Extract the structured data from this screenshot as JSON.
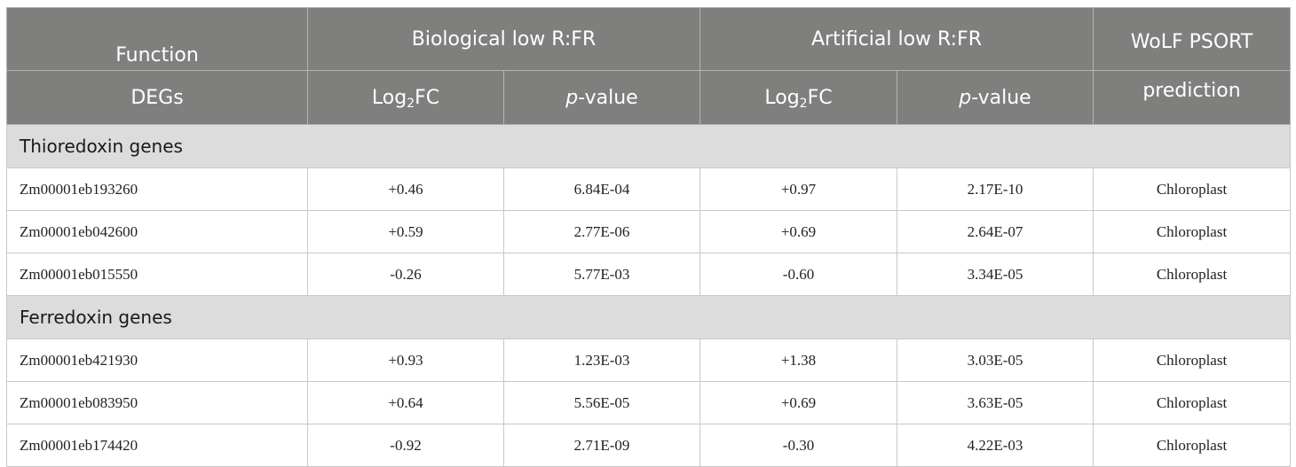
{
  "header": {
    "function": "Function",
    "degs": "DEGs",
    "biological": "Biological low R:FR",
    "artificial": "Artificial low R:FR",
    "log2fc_prefix": "Log",
    "log2fc_sub": "2",
    "log2fc_suffix": "FC",
    "pvalue_italic": "p",
    "pvalue_rest": "-value",
    "wolf_line1": "WoLF PSORT",
    "wolf_line2": "prediction"
  },
  "sections": [
    {
      "title": "Thioredoxin genes",
      "rows": [
        {
          "gene": "Zm00001eb193260",
          "bio_fc": "+0.46",
          "bio_p": "6.84E-04",
          "art_fc": "+0.97",
          "art_p": "2.17E-10",
          "pred": "Chloroplast"
        },
        {
          "gene": "Zm00001eb042600",
          "bio_fc": "+0.59",
          "bio_p": "2.77E-06",
          "art_fc": "+0.69",
          "art_p": "2.64E-07",
          "pred": "Chloroplast"
        },
        {
          "gene": "Zm00001eb015550",
          "bio_fc": "-0.26",
          "bio_p": "5.77E-03",
          "art_fc": "-0.60",
          "art_p": "3.34E-05",
          "pred": "Chloroplast"
        }
      ]
    },
    {
      "title": "Ferredoxin genes",
      "rows": [
        {
          "gene": "Zm00001eb421930",
          "bio_fc": "+0.93",
          "bio_p": "1.23E-03",
          "art_fc": "+1.38",
          "art_p": "3.03E-05",
          "pred": "Chloroplast"
        },
        {
          "gene": "Zm00001eb083950",
          "bio_fc": "+0.64",
          "bio_p": "5.56E-05",
          "art_fc": "+0.69",
          "art_p": "3.63E-05",
          "pred": "Chloroplast"
        },
        {
          "gene": "Zm00001eb174420",
          "bio_fc": "-0.92",
          "bio_p": "2.71E-09",
          "art_fc": "-0.30",
          "art_p": "4.22E-03",
          "pred": "Chloroplast"
        }
      ]
    }
  ]
}
